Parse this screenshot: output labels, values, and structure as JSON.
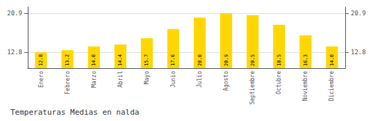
{
  "chart_data": {
    "type": "bar",
    "title": "Temperaturas Medias en nalda",
    "categories": [
      "Enero",
      "Febrero",
      "Marzo",
      "Abril",
      "Mayo",
      "Junio",
      "Julio",
      "Agosto",
      "Septiembre",
      "Octubre",
      "Noviembre",
      "Diciembre"
    ],
    "values": [
      12.8,
      13.2,
      14.0,
      14.4,
      15.7,
      17.6,
      20.0,
      20.9,
      20.5,
      18.5,
      16.3,
      14.0
    ],
    "value_labels": [
      "12.8",
      "13.2",
      "14.0",
      "14.4",
      "15.7",
      "17.6",
      "20.0",
      "20.9",
      "20.5",
      "18.5",
      "16.3",
      "14.0"
    ],
    "color": "#FFD700",
    "ylim": [
      9.5,
      22.2
    ],
    "yticks": [
      12.8,
      20.9
    ],
    "y2lim": [
      9.5,
      22.2
    ],
    "y2ticks": [
      12.8,
      20.9
    ],
    "grid": true,
    "data_labels": true
  }
}
